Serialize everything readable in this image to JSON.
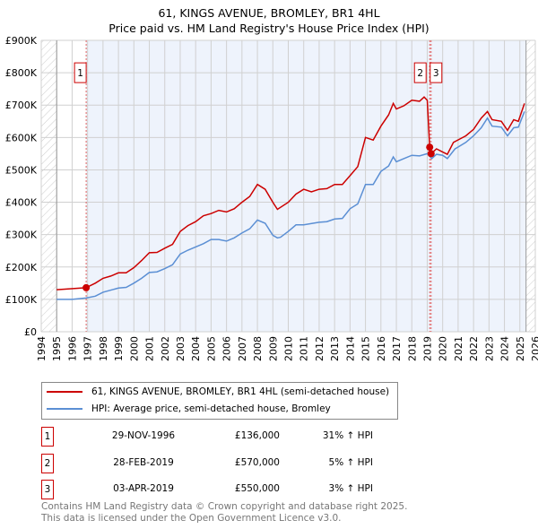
{
  "chart_data": {
    "type": "line",
    "title": "61, KINGS AVENUE, BROMLEY, BR1 4HL",
    "subtitle": "Price paid vs. HM Land Registry's House Price Index (HPI)",
    "xlim": [
      1994,
      2026
    ],
    "ylim": [
      0,
      900000
    ],
    "x_ticks": [
      "1994",
      "1995",
      "1996",
      "1997",
      "1998",
      "1999",
      "2000",
      "2001",
      "2002",
      "2003",
      "2004",
      "2005",
      "2006",
      "2007",
      "2008",
      "2009",
      "2010",
      "2011",
      "2012",
      "2013",
      "2014",
      "2015",
      "2016",
      "2017",
      "2018",
      "2019",
      "2020",
      "2021",
      "2022",
      "2023",
      "2024",
      "2025",
      "2026"
    ],
    "y_ticks": [
      {
        "v": 0,
        "label": "£0"
      },
      {
        "v": 100000,
        "label": "£100K"
      },
      {
        "v": 200000,
        "label": "£200K"
      },
      {
        "v": 300000,
        "label": "£300K"
      },
      {
        "v": 400000,
        "label": "£400K"
      },
      {
        "v": 500000,
        "label": "£500K"
      },
      {
        "v": 600000,
        "label": "£600K"
      },
      {
        "v": 700000,
        "label": "£700K"
      },
      {
        "v": 800000,
        "label": "£800K"
      },
      {
        "v": 900000,
        "label": "£900K"
      }
    ],
    "grid": true,
    "legend_placement": "below",
    "series": [
      {
        "name": "61, KINGS AVENUE, BROMLEY, BR1 4HL (semi-detached house)",
        "color": "#cc0000",
        "x": [
          1995,
          1996.9,
          1997.5,
          1998,
          1998.5,
          1999,
          1999.5,
          2000,
          2000.5,
          2001,
          2001.5,
          2002,
          2002.5,
          2003,
          2003.5,
          2004,
          2004.5,
          2005,
          2005.5,
          2006,
          2006.5,
          2007,
          2007.5,
          2008,
          2008.5,
          2009,
          2009.3,
          2010,
          2010.5,
          2011,
          2011.5,
          2012,
          2012.5,
          2013,
          2013.5,
          2014,
          2014.5,
          2015,
          2015.5,
          2016,
          2016.5,
          2016.8,
          2017,
          2017.5,
          2018,
          2018.5,
          2018.8,
          2019.0,
          2019.16,
          2019.25,
          2019.6,
          2020,
          2020.3,
          2020.7,
          2021.5,
          2022,
          2022.5,
          2022.9,
          2023.2,
          2023.8,
          2024.2,
          2024.6,
          2024.9,
          2025.3
        ],
        "y": [
          130000,
          136000,
          150000,
          165000,
          172000,
          182000,
          182000,
          198000,
          220000,
          244000,
          245000,
          258000,
          270000,
          310000,
          328000,
          340000,
          358000,
          365000,
          375000,
          370000,
          380000,
          400000,
          418000,
          455000,
          440000,
          400000,
          378000,
          400000,
          425000,
          440000,
          432000,
          440000,
          442000,
          455000,
          455000,
          482000,
          510000,
          600000,
          592000,
          635000,
          670000,
          705000,
          688000,
          698000,
          715000,
          712000,
          725000,
          715000,
          570000,
          550000,
          565000,
          555000,
          548000,
          585000,
          605000,
          625000,
          660000,
          680000,
          655000,
          650000,
          622000,
          655000,
          650000,
          705000
        ]
      },
      {
        "name": "HPI: Average price, semi-detached house, Bromley",
        "color": "#5b8fd4",
        "x": [
          1995,
          1996,
          1996.9,
          1997.5,
          1998,
          1999,
          1999.5,
          2000,
          2000.5,
          2001,
          2001.5,
          2002,
          2002.5,
          2003,
          2003.5,
          2004,
          2004.5,
          2005,
          2005.5,
          2006,
          2006.5,
          2007,
          2007.5,
          2008,
          2008.5,
          2009,
          2009.3,
          2009.5,
          2010,
          2010.5,
          2011,
          2012,
          2012.5,
          2013,
          2013.5,
          2014,
          2014.5,
          2015,
          2015.5,
          2016,
          2016.5,
          2016.8,
          2017,
          2017.5,
          2018,
          2018.5,
          2019,
          2019.3,
          2019.6,
          2020,
          2020.3,
          2020.8,
          2021.5,
          2022,
          2022.5,
          2022.9,
          2023.2,
          2023.8,
          2024.2,
          2024.6,
          2024.9,
          2025.3
        ],
        "y": [
          100000,
          100000,
          104000,
          110000,
          122000,
          135000,
          137000,
          150000,
          165000,
          183000,
          185000,
          195000,
          207000,
          240000,
          252000,
          262000,
          272000,
          285000,
          285000,
          280000,
          290000,
          305000,
          318000,
          345000,
          335000,
          298000,
          290000,
          292000,
          310000,
          330000,
          330000,
          338000,
          340000,
          348000,
          350000,
          380000,
          395000,
          455000,
          455000,
          495000,
          512000,
          540000,
          525000,
          535000,
          545000,
          543000,
          550000,
          535000,
          548000,
          545000,
          535000,
          565000,
          585000,
          605000,
          630000,
          660000,
          635000,
          632000,
          605000,
          630000,
          632000,
          680000
        ]
      }
    ],
    "transactions": [
      {
        "num": "1",
        "x": 1996.91,
        "date": "29-NOV-1996",
        "price": "£136,000",
        "price_value": 136000,
        "hpi": "31% ↑ HPI"
      },
      {
        "num": "2",
        "x": 2019.16,
        "date": "28-FEB-2019",
        "price": "£570,000",
        "price_value": 570000,
        "hpi": "5% ↑ HPI"
      },
      {
        "num": "3",
        "x": 2019.25,
        "date": "03-APR-2019",
        "price": "£550,000",
        "price_value": 550000,
        "hpi": "3% ↑ HPI"
      }
    ],
    "hatched_before": 1995,
    "hatched_after": 2025.4
  },
  "footer": {
    "line1": "Contains HM Land Registry data © Crown copyright and database right 2025.",
    "line2": "This data is licensed under the Open Government Licence v3.0."
  }
}
